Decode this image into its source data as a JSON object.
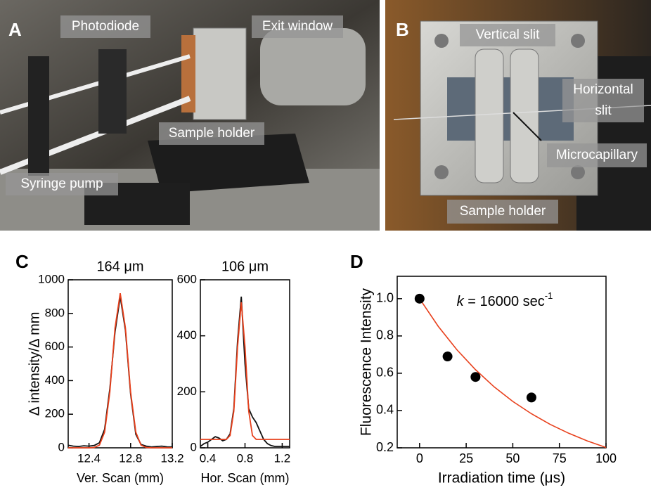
{
  "panel_a": {
    "letter": "A",
    "labels": [
      "Photodiode",
      "Exit window",
      "Sample holder",
      "Syringe pump"
    ]
  },
  "panel_b": {
    "letter": "B",
    "labels": [
      "Vertical slit",
      "Horizontal",
      "slit",
      "Microcapillary",
      "Sample holder"
    ]
  },
  "panel_c": {
    "letter": "C"
  },
  "panel_d": {
    "letter": "D"
  },
  "chart_data": [
    {
      "type": "line",
      "title": "164 μm",
      "y_label": "Δ intensity/Δ mm",
      "x_label": "Ver. Scan (mm)",
      "xlim": [
        12.2,
        13.2
      ],
      "xticks": [
        12.4,
        12.8,
        13.2
      ],
      "ylim": [
        0,
        1000
      ],
      "yticks": [
        0,
        200,
        400,
        600,
        800,
        1000
      ],
      "x": [
        12.2,
        12.25,
        12.3,
        12.35,
        12.4,
        12.45,
        12.5,
        12.55,
        12.6,
        12.65,
        12.7,
        12.75,
        12.8,
        12.85,
        12.9,
        12.95,
        13.0,
        13.05,
        13.1,
        13.15,
        13.2
      ],
      "series": [
        {
          "color": "#111111",
          "values": [
            15,
            10,
            8,
            12,
            10,
            14,
            30,
            110,
            350,
            690,
            900,
            700,
            320,
            80,
            20,
            10,
            5,
            8,
            10,
            6,
            5
          ]
        },
        {
          "color": "#e8401c",
          "values": [
            0,
            0,
            0,
            0,
            0,
            2,
            16,
            93,
            331,
            713,
            920,
            713,
            331,
            93,
            16,
            2,
            0,
            0,
            0,
            0,
            0
          ]
        }
      ]
    },
    {
      "type": "line",
      "title": "106 μm",
      "x_label": "Hor. Scan (mm)",
      "xlim": [
        0.32,
        1.28
      ],
      "xticks": [
        0.4,
        0.8,
        1.2
      ],
      "ylim": [
        0,
        600
      ],
      "yticks": [
        0,
        200,
        400,
        600
      ],
      "x": [
        0.32,
        0.36,
        0.4,
        0.44,
        0.48,
        0.52,
        0.56,
        0.6,
        0.64,
        0.68,
        0.72,
        0.76,
        0.8,
        0.84,
        0.88,
        0.92,
        0.96,
        1.0,
        1.04,
        1.08,
        1.12,
        1.16,
        1.2,
        1.24,
        1.28
      ],
      "series": [
        {
          "color": "#111111",
          "values": [
            5,
            15,
            20,
            30,
            40,
            35,
            25,
            30,
            50,
            140,
            380,
            540,
            300,
            140,
            110,
            90,
            60,
            30,
            15,
            8,
            5,
            5,
            5,
            5,
            5
          ]
        },
        {
          "color": "#e8401c",
          "values": [
            30,
            30,
            30,
            30,
            30,
            30,
            30,
            30,
            44,
            131,
            360,
            520,
            360,
            131,
            44,
            30,
            30,
            30,
            30,
            30,
            30,
            30,
            30,
            30,
            30
          ]
        }
      ]
    },
    {
      "type": "scatter",
      "y_label": "Fluorescence Intensity",
      "x_label": "Irradiation time (μs)",
      "annotation": [
        "k",
        " = 16000 sec",
        "-1"
      ],
      "xlim": [
        -12,
        100
      ],
      "xticks": [
        0,
        25,
        50,
        75,
        100
      ],
      "ylim": [
        0.2,
        1.12
      ],
      "yticks": [
        0.2,
        0.4,
        0.6,
        0.8,
        {
          "value": 1,
          "label": "1.0"
        }
      ],
      "points": {
        "color": "#000000",
        "x": [
          0,
          15,
          30,
          60
        ],
        "values": [
          1.0,
          0.69,
          0.58,
          0.47
        ]
      },
      "fit": {
        "color": "#e8401c",
        "x": [
          0,
          10,
          20,
          30,
          40,
          50,
          60,
          70,
          80,
          90,
          100
        ],
        "values": [
          1.0,
          0.852,
          0.726,
          0.619,
          0.527,
          0.449,
          0.383,
          0.326,
          0.278,
          0.237,
          0.202
        ]
      }
    }
  ]
}
